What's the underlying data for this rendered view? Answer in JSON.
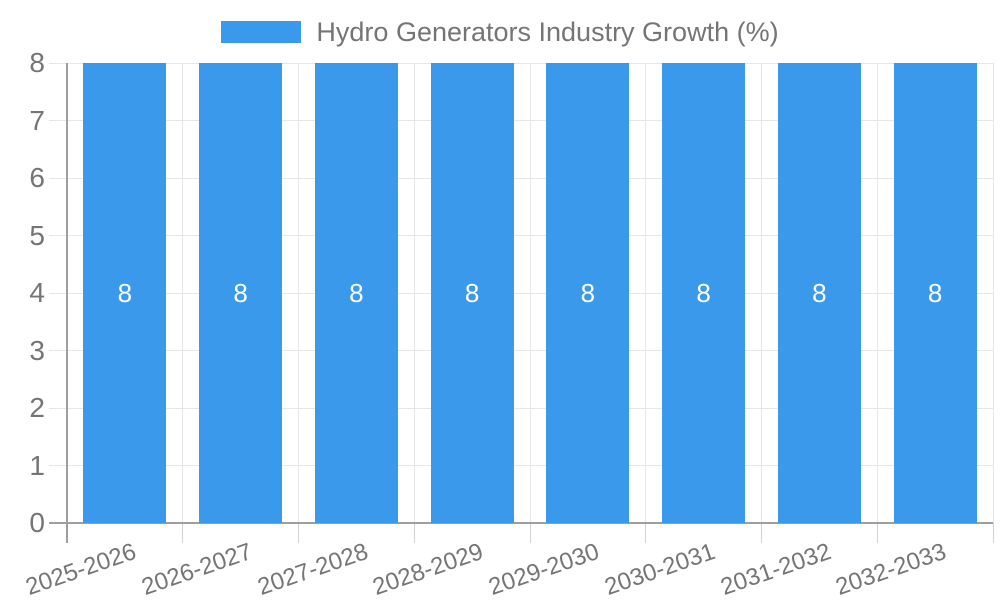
{
  "legend": {
    "label": "Hydro Generators Industry Growth (%)",
    "position": "top-center"
  },
  "chart_data": {
    "type": "bar",
    "title": "Hydro Generators Industry Growth (%)",
    "categories": [
      "2025-2026",
      "2026-2027",
      "2027-2028",
      "2028-2029",
      "2029-2030",
      "2030-2031",
      "2031-2032",
      "2032-2033"
    ],
    "series": [
      {
        "name": "Hydro Generators Industry Growth (%)",
        "values": [
          8,
          8,
          8,
          8,
          8,
          8,
          8,
          8
        ],
        "bar_labels": [
          "8",
          "8",
          "8",
          "8",
          "8",
          "8",
          "8",
          "8"
        ]
      }
    ],
    "xlabel": "",
    "ylabel": "",
    "ylim": [
      0,
      8
    ],
    "yticks": [
      0,
      1,
      2,
      3,
      4,
      5,
      6,
      7,
      8
    ],
    "grid": true,
    "legend_position": "top-center",
    "x_tick_rotation_deg": -19,
    "colors": {
      "bar": "#3b99ec",
      "grid": "#e6e6e6",
      "axis": "#9e9e9e",
      "tick": "#d2d2d2",
      "text": "#757575",
      "bar_label": "#ffffff",
      "background": "#ffffff"
    }
  }
}
